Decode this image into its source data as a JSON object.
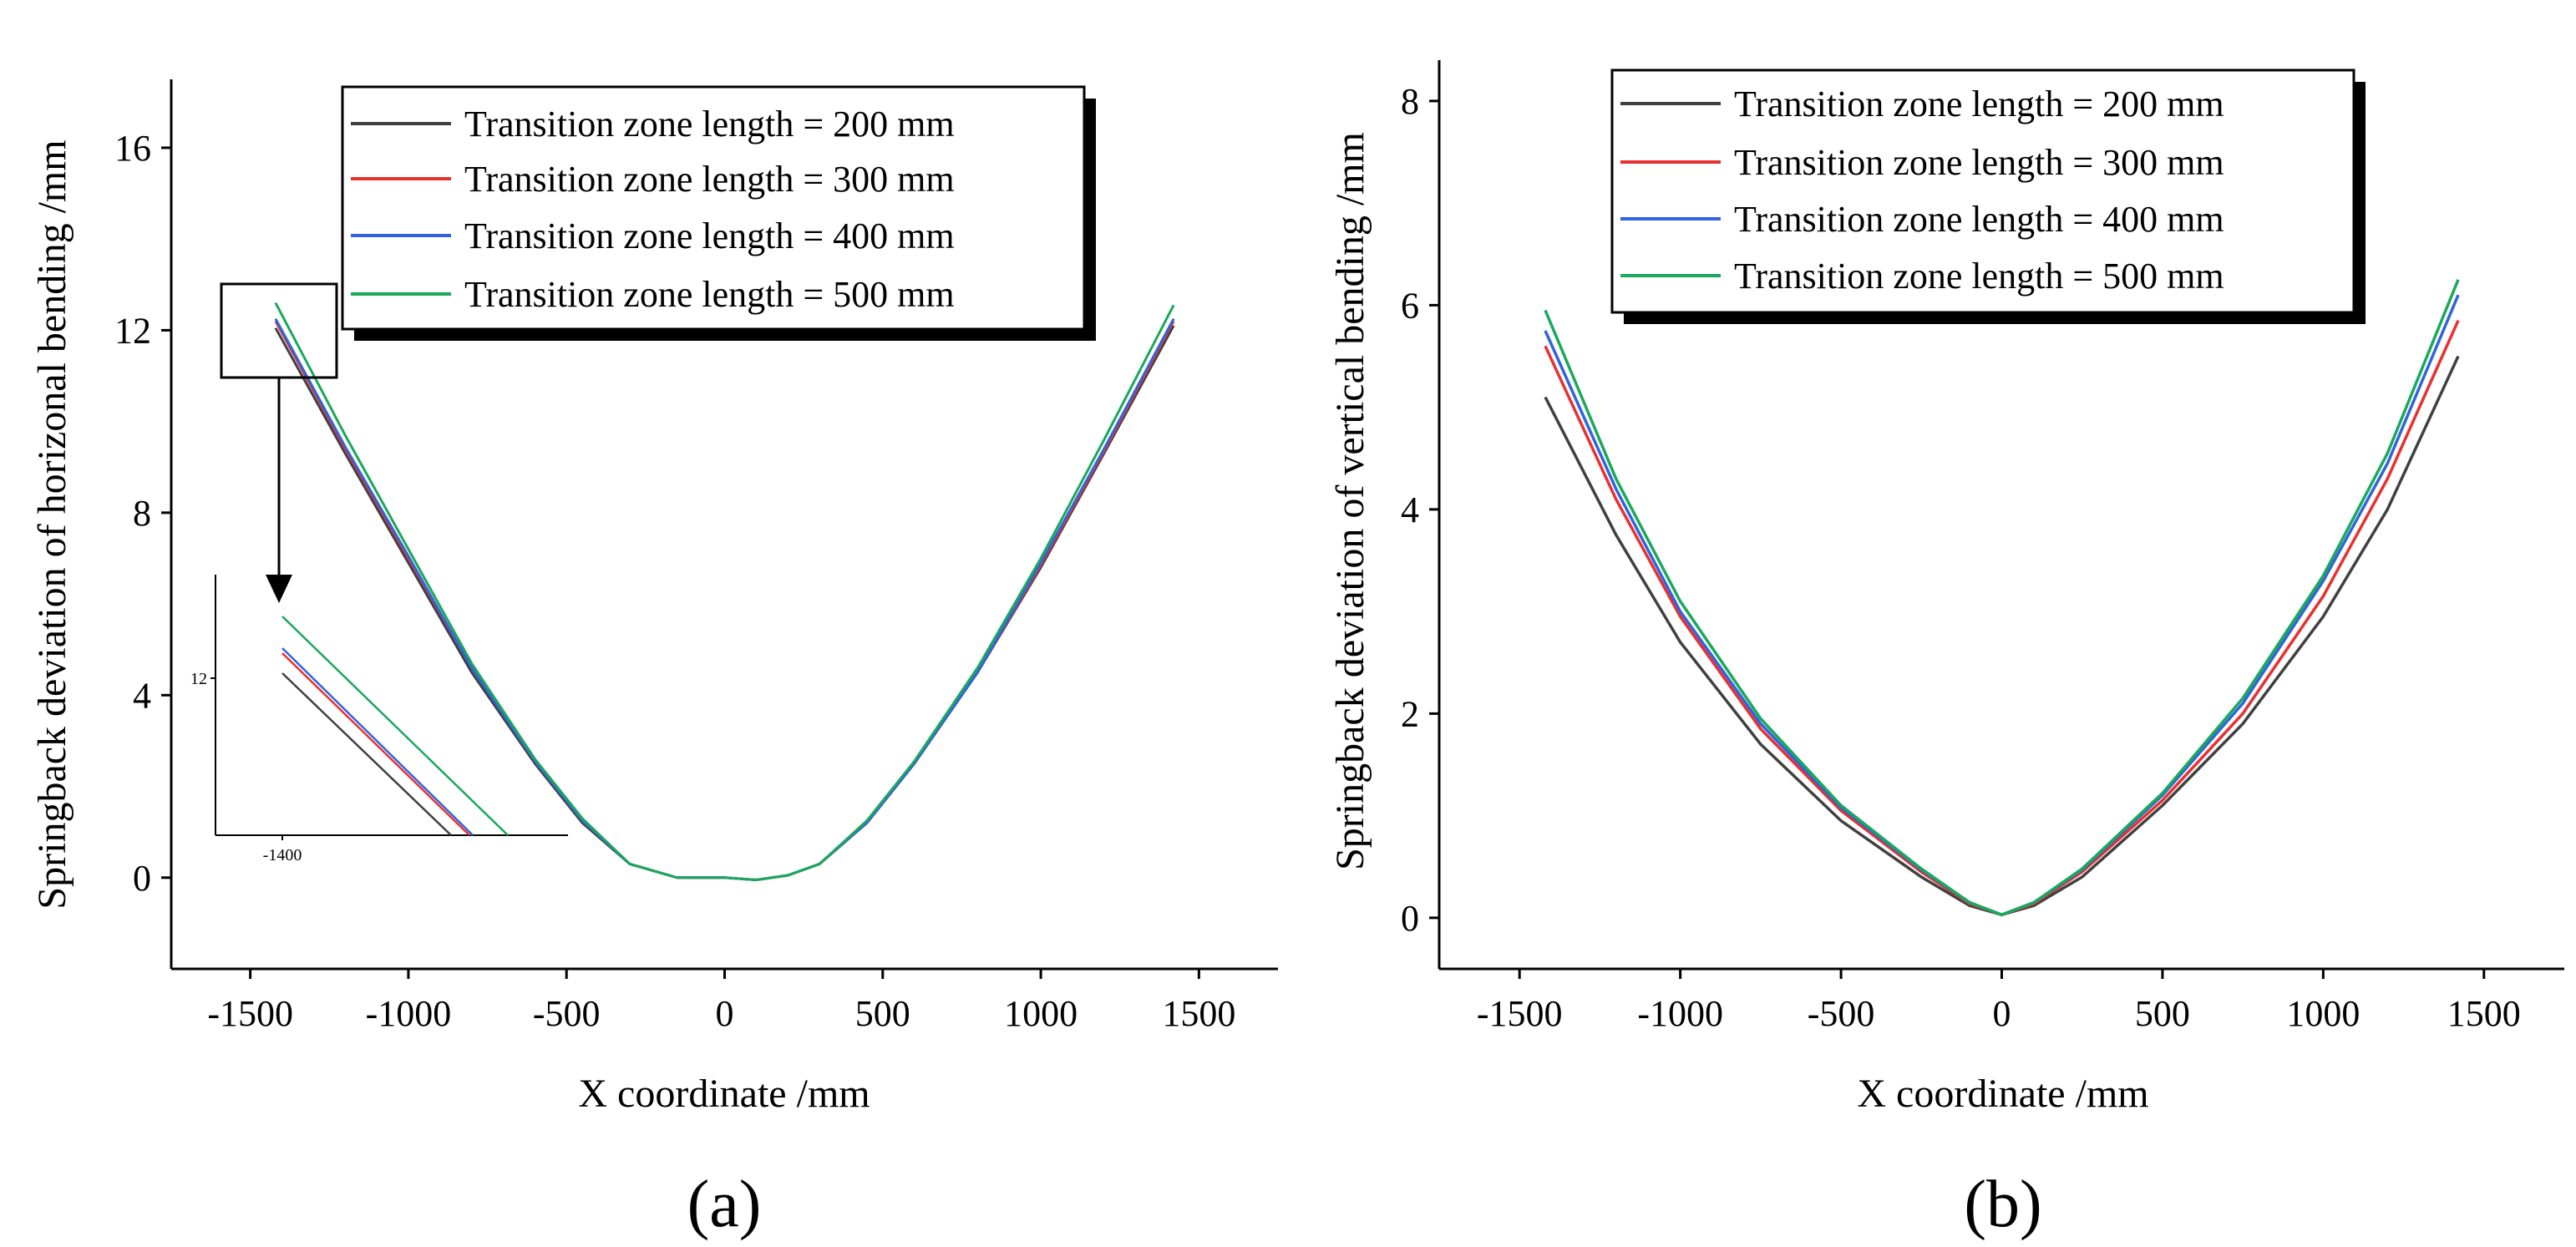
{
  "chart_data": [
    {
      "id": "a",
      "type": "line",
      "panel_label": "(a)",
      "xlabel": "X coordinate /mm",
      "ylabel": "Springback deviation of horizonal bending /mm",
      "xlim": [
        -1750,
        1750
      ],
      "ylim": [
        -2,
        17.5
      ],
      "xticks": [
        -1500,
        -1000,
        -500,
        0,
        500,
        1000,
        1500
      ],
      "xtick_labels": [
        "-1500",
        "-1000",
        "-500",
        "0",
        "500",
        "1000",
        "1500"
      ],
      "yticks": [
        0,
        4,
        8,
        12,
        16
      ],
      "ytick_labels": [
        "0",
        "4",
        "8",
        "12",
        "16"
      ],
      "legend_position": "top-right",
      "series": [
        {
          "name": "Transition zone length = 200 mm",
          "color": "#404040",
          "x": [
            -1420,
            -1200,
            -1000,
            -800,
            -600,
            -450,
            -300,
            -150,
            0,
            100,
            200,
            300,
            450,
            600,
            800,
            1000,
            1200,
            1420
          ],
          "y": [
            12.05,
            9.3,
            6.9,
            4.5,
            2.5,
            1.2,
            0.3,
            0.0,
            0.0,
            -0.05,
            0.05,
            0.3,
            1.2,
            2.5,
            4.5,
            6.8,
            9.3,
            12.1
          ]
        },
        {
          "name": "Transition zone length = 300 mm",
          "color": "#e8302f",
          "x": [
            -1420,
            -1200,
            -1000,
            -800,
            -600,
            -450,
            -300,
            -150,
            0,
            100,
            200,
            300,
            450,
            600,
            800,
            1000,
            1200,
            1420
          ],
          "y": [
            12.2,
            9.4,
            7.0,
            4.6,
            2.55,
            1.25,
            0.3,
            0.0,
            0.0,
            -0.05,
            0.05,
            0.3,
            1.2,
            2.5,
            4.5,
            6.85,
            9.35,
            12.2
          ]
        },
        {
          "name": "Transition zone length = 400 mm",
          "color": "#2f63e0",
          "x": [
            -1420,
            -1200,
            -1000,
            -800,
            -600,
            -450,
            -300,
            -150,
            0,
            100,
            200,
            300,
            450,
            600,
            800,
            1000,
            1200,
            1420
          ],
          "y": [
            12.25,
            9.45,
            7.05,
            4.6,
            2.55,
            1.25,
            0.3,
            0.0,
            0.0,
            -0.05,
            0.05,
            0.3,
            1.2,
            2.5,
            4.5,
            6.9,
            9.4,
            12.25
          ]
        },
        {
          "name": "Transition zone length = 500 mm",
          "color": "#1aa85a",
          "x": [
            -1420,
            -1200,
            -1000,
            -800,
            -600,
            -450,
            -300,
            -150,
            0,
            100,
            200,
            300,
            450,
            600,
            800,
            1000,
            1200,
            1420
          ],
          "y": [
            12.6,
            9.7,
            7.2,
            4.7,
            2.6,
            1.3,
            0.3,
            0.0,
            0.0,
            -0.05,
            0.05,
            0.3,
            1.25,
            2.55,
            4.6,
            7.0,
            9.6,
            12.55
          ]
        }
      ],
      "inset": {
        "annotation": "zoom of left end near x = -1400",
        "xtick_labels": [
          "-1400"
        ],
        "ytick_labels": [
          "12"
        ]
      }
    },
    {
      "id": "b",
      "type": "line",
      "panel_label": "(b)",
      "xlabel": "X coordinate /mm",
      "ylabel": "Springback deviation of vertical bending /mm",
      "xlim": [
        -1750,
        1750
      ],
      "ylim": [
        -0.5,
        8.4
      ],
      "xticks": [
        -1500,
        -1000,
        -500,
        0,
        500,
        1000,
        1500
      ],
      "xtick_labels": [
        "-1500",
        "-1000",
        "-500",
        "0",
        "500",
        "1000",
        "1500"
      ],
      "yticks": [
        0,
        2,
        4,
        6,
        8
      ],
      "ytick_labels": [
        "0",
        "2",
        "4",
        "6",
        "8"
      ],
      "legend_position": "top-left",
      "series": [
        {
          "name": "Transition zone length = 200 mm",
          "color": "#404040",
          "x": [
            -1420,
            -1200,
            -1000,
            -750,
            -500,
            -250,
            -100,
            0,
            100,
            250,
            500,
            750,
            1000,
            1200,
            1420
          ],
          "y": [
            5.1,
            3.75,
            2.7,
            1.7,
            0.95,
            0.4,
            0.12,
            0.03,
            0.12,
            0.4,
            1.1,
            1.9,
            2.95,
            4.0,
            5.5
          ]
        },
        {
          "name": "Transition zone length = 300 mm",
          "color": "#e8302f",
          "x": [
            -1420,
            -1200,
            -1000,
            -750,
            -500,
            -250,
            -100,
            0,
            100,
            250,
            500,
            750,
            1000,
            1200,
            1420
          ],
          "y": [
            5.6,
            4.1,
            2.95,
            1.85,
            1.05,
            0.45,
            0.14,
            0.03,
            0.14,
            0.45,
            1.15,
            2.0,
            3.15,
            4.3,
            5.85
          ]
        },
        {
          "name": "Transition zone length = 400 mm",
          "color": "#2f63e0",
          "x": [
            -1420,
            -1200,
            -1000,
            -750,
            -500,
            -250,
            -100,
            0,
            100,
            250,
            500,
            750,
            1000,
            1200,
            1420
          ],
          "y": [
            5.75,
            4.2,
            3.0,
            1.9,
            1.08,
            0.47,
            0.15,
            0.03,
            0.15,
            0.47,
            1.2,
            2.1,
            3.3,
            4.45,
            6.1
          ]
        },
        {
          "name": "Transition zone length = 500 mm",
          "color": "#1aa85a",
          "x": [
            -1420,
            -1200,
            -1000,
            -750,
            -500,
            -250,
            -100,
            0,
            100,
            250,
            500,
            750,
            1000,
            1200,
            1420
          ],
          "y": [
            5.95,
            4.3,
            3.1,
            1.95,
            1.1,
            0.48,
            0.15,
            0.03,
            0.15,
            0.48,
            1.22,
            2.15,
            3.35,
            4.55,
            6.25
          ]
        }
      ]
    }
  ]
}
